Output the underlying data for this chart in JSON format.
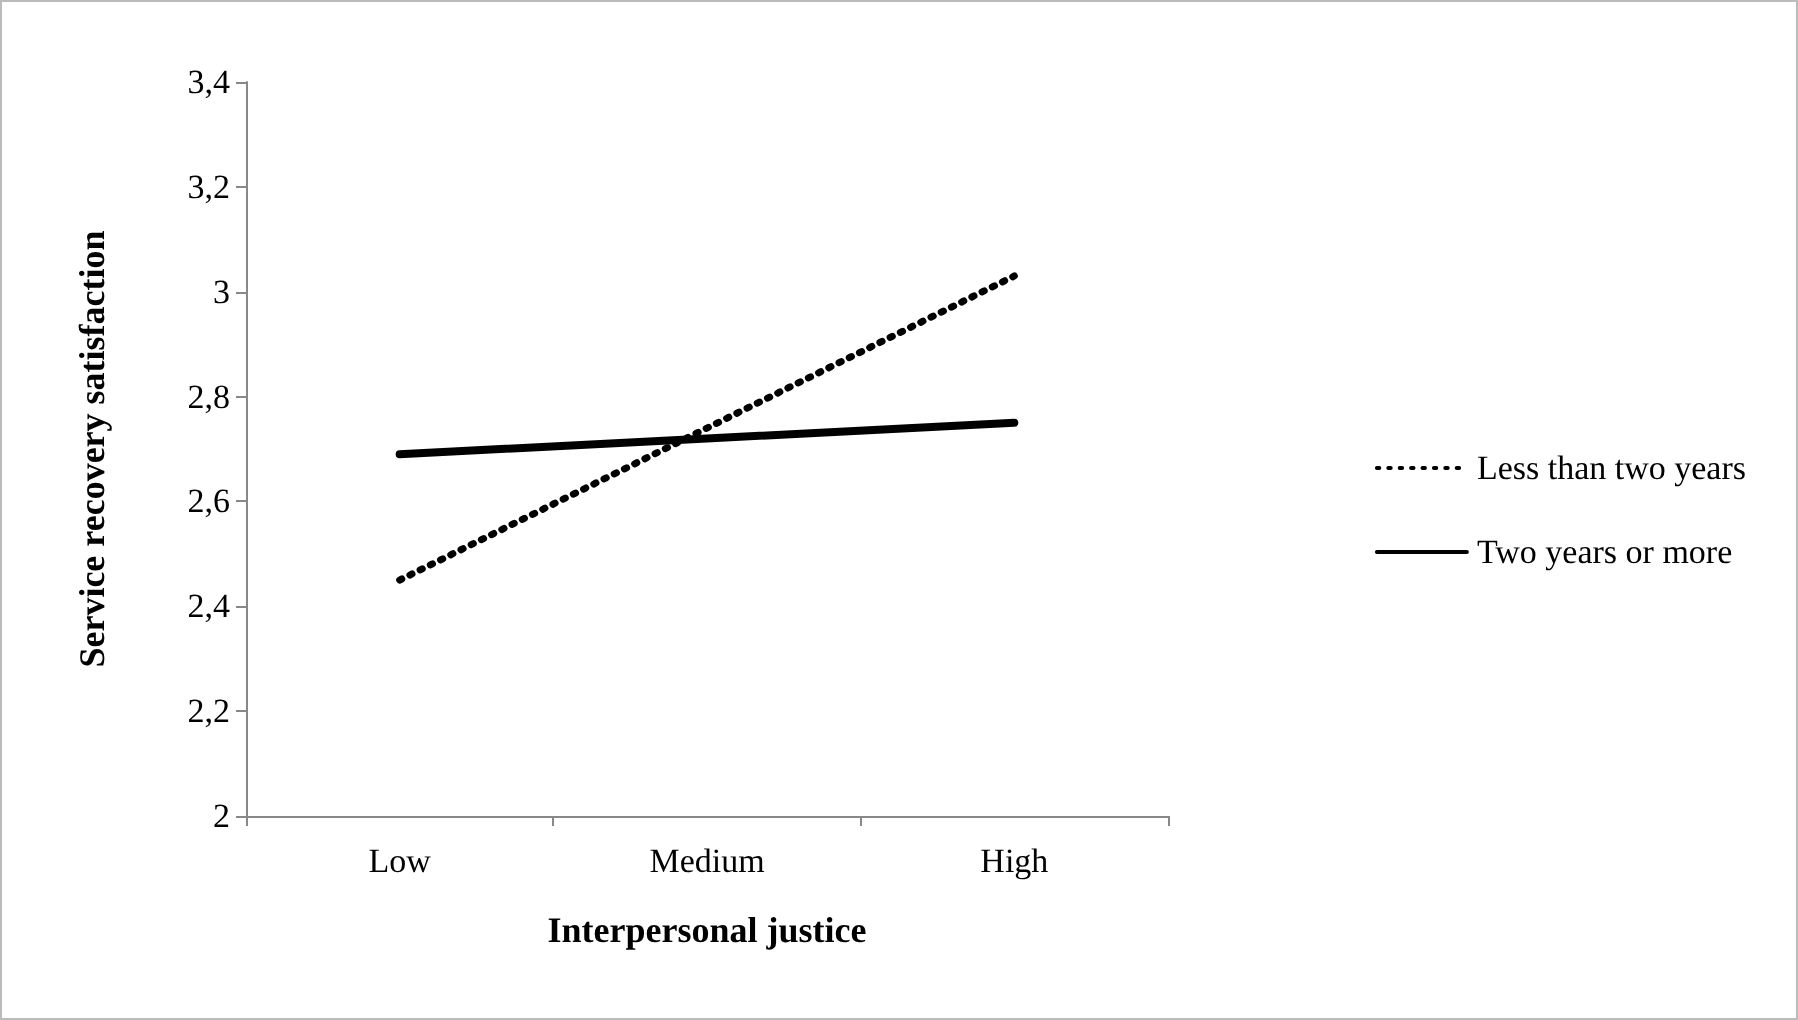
{
  "chart_data": {
    "type": "line",
    "xlabel": "Interpersonal justice",
    "ylabel": "Service recovery satisfaction",
    "categories": [
      "Low",
      "Medium",
      "High"
    ],
    "series": [
      {
        "name": "Less than two years",
        "color": "#000000",
        "values": [
          2.45,
          2.74,
          3.03
        ],
        "line_style": "dotted"
      },
      {
        "name": "Two years or more",
        "color": "#000000",
        "values": [
          2.69,
          2.72,
          2.75
        ],
        "line_style": "solid"
      }
    ],
    "ylim": [
      2,
      3.4
    ],
    "yticks": [
      {
        "value": 2,
        "label": "2"
      },
      {
        "value": 2.2,
        "label": "2,2"
      },
      {
        "value": 2.4,
        "label": "2,4"
      },
      {
        "value": 2.6,
        "label": "2,6"
      },
      {
        "value": 2.8,
        "label": "2,8"
      },
      {
        "value": 3,
        "label": "3"
      },
      {
        "value": 3.2,
        "label": "3,2"
      },
      {
        "value": 3.4,
        "label": "3,4"
      }
    ],
    "grid": false,
    "legend": "right",
    "marker": "none"
  }
}
